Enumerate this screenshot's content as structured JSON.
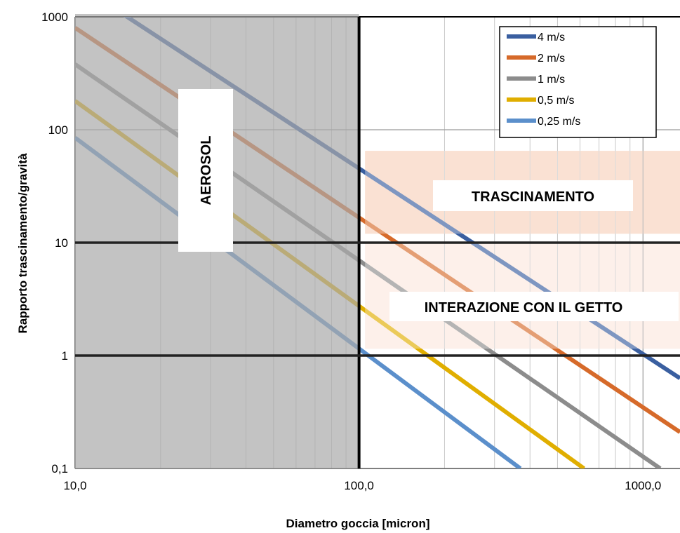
{
  "chart_data": {
    "type": "line",
    "xlabel": "Diametro goccia [micron]",
    "ylabel": "Rapporto trascinamento/gravità",
    "x_scale": "log",
    "y_scale": "log",
    "xlim": [
      10,
      1350
    ],
    "ylim": [
      0.1,
      1000
    ],
    "grid": true,
    "legend_position": "top-right",
    "x_tick_labels": [
      {
        "value": 10,
        "label": "10,0"
      },
      {
        "value": 100,
        "label": "100,0"
      },
      {
        "value": 1000,
        "label": "1000,0"
      }
    ],
    "y_tick_labels": [
      {
        "value": 0.1,
        "label": "0,1"
      },
      {
        "value": 1,
        "label": "1"
      },
      {
        "value": 10,
        "label": "10"
      },
      {
        "value": 100,
        "label": "100"
      },
      {
        "value": 1000,
        "label": "1000"
      }
    ],
    "series": [
      {
        "name": "4 m/s",
        "color": "#3a5fa0",
        "x": [
          10,
          1350
        ],
        "y": [
          2000,
          0.63
        ]
      },
      {
        "name": "2 m/s",
        "color": "#d66a2a",
        "x": [
          10,
          1350
        ],
        "y": [
          800,
          0.21
        ]
      },
      {
        "name": "1 m/s",
        "color": "#8c8c8c",
        "x": [
          10,
          1150
        ],
        "y": [
          380,
          0.1
        ]
      },
      {
        "name": "0,5 m/s",
        "color": "#e0ae00",
        "x": [
          10,
          620
        ],
        "y": [
          180,
          0.1
        ]
      },
      {
        "name": "0,25 m/s",
        "color": "#5b8fcb",
        "x": [
          10,
          370
        ],
        "y": [
          85,
          0.1
        ]
      }
    ],
    "regions": [
      {
        "label": "AEROSOL",
        "x_range": [
          10,
          100
        ],
        "y_range": [
          0.1,
          1000
        ],
        "color": "#c0c0c0",
        "label_orientation": "vertical"
      },
      {
        "label": "TRASCINAMENTO",
        "x_range": [
          105,
          1350
        ],
        "y_range": [
          12,
          65
        ],
        "color": "#f8d2bc"
      },
      {
        "label": "INTERAZIONE CON IL GETTO",
        "x_range": [
          105,
          1350
        ],
        "y_range": [
          1.15,
          10
        ],
        "color": "#fce9df"
      }
    ],
    "reference_lines": [
      {
        "orientation": "vertical",
        "value": 100
      },
      {
        "orientation": "horizontal",
        "value": 10
      },
      {
        "orientation": "horizontal",
        "value": 1
      }
    ]
  }
}
